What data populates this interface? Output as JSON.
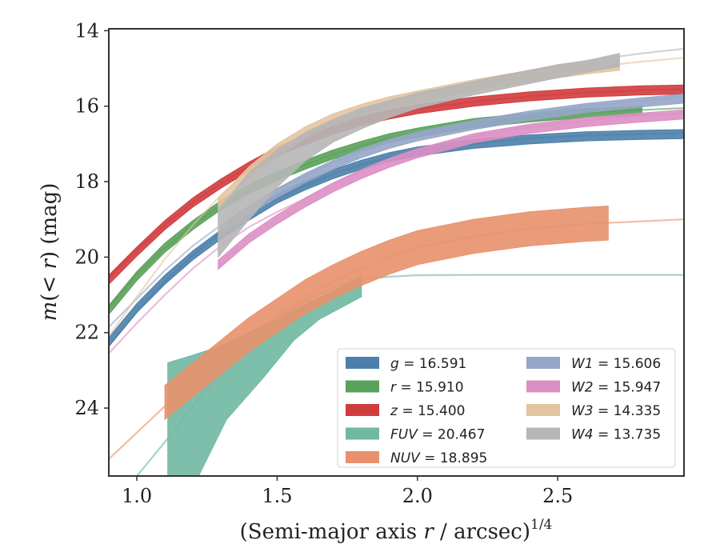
{
  "chart_data": {
    "type": "line",
    "title": "",
    "xlabel": "(Semi-major axis r / arcsec)",
    "xlabel_parts": {
      "pre": "(Semi-major axis ",
      "var": "r",
      "post": " / arcsec)",
      "sup": "1/4"
    },
    "ylabel_parts": {
      "var1": "m",
      "mid": "(< ",
      "var2": "r",
      "post": ") (mag)"
    },
    "ylabel": "m(< r) (mag)",
    "xlim": [
      0.9,
      2.95
    ],
    "ylim": [
      25.8,
      13.95
    ],
    "y_inverted": true,
    "xticks": [
      1.0,
      1.5,
      2.0,
      2.5
    ],
    "xtick_labels": [
      "1.0",
      "1.5",
      "2.0",
      "2.5"
    ],
    "yticks": [
      14,
      16,
      18,
      20,
      22,
      24
    ],
    "ytick_labels": [
      "14",
      "16",
      "18",
      "20",
      "22",
      "24"
    ],
    "grid": false,
    "legend_position": "bottom-right",
    "legend_columns": 2,
    "series": [
      {
        "name": "g",
        "value": "16.591",
        "color": "#4c7fab",
        "model": [
          [
            0.9,
            22.35
          ],
          [
            1.0,
            21.45
          ],
          [
            1.1,
            20.65
          ],
          [
            1.2,
            19.95
          ],
          [
            1.3,
            19.35
          ],
          [
            1.4,
            18.85
          ],
          [
            1.5,
            18.45
          ],
          [
            1.6,
            18.1
          ],
          [
            1.7,
            17.8
          ],
          [
            1.8,
            17.55
          ],
          [
            1.9,
            17.35
          ],
          [
            2.0,
            17.2
          ],
          [
            2.2,
            17.0
          ],
          [
            2.4,
            16.85
          ],
          [
            2.6,
            16.78
          ],
          [
            2.8,
            16.74
          ],
          [
            2.95,
            16.72
          ]
        ],
        "data": [
          [
            0.9,
            22.25
          ],
          [
            1.0,
            21.35
          ],
          [
            1.1,
            20.6
          ],
          [
            1.2,
            19.95
          ],
          [
            1.3,
            19.4
          ],
          [
            1.4,
            18.9
          ],
          [
            1.5,
            18.45
          ],
          [
            1.6,
            18.1
          ],
          [
            1.7,
            17.8
          ],
          [
            1.8,
            17.55
          ],
          [
            1.9,
            17.35
          ],
          [
            2.0,
            17.2
          ],
          [
            2.2,
            17.0
          ],
          [
            2.4,
            16.88
          ],
          [
            2.6,
            16.8
          ],
          [
            2.8,
            16.76
          ],
          [
            2.95,
            16.74
          ]
        ],
        "band_width": 0.12
      },
      {
        "name": "r",
        "value": "15.910",
        "color": "#5aa15a",
        "model": [
          [
            0.9,
            21.35
          ],
          [
            1.0,
            20.45
          ],
          [
            1.1,
            19.75
          ],
          [
            1.2,
            19.15
          ],
          [
            1.3,
            18.62
          ],
          [
            1.4,
            18.2
          ],
          [
            1.5,
            17.85
          ],
          [
            1.6,
            17.55
          ],
          [
            1.7,
            17.28
          ],
          [
            1.8,
            17.05
          ],
          [
            1.9,
            16.85
          ],
          [
            2.0,
            16.7
          ],
          [
            2.2,
            16.45
          ],
          [
            2.4,
            16.3
          ],
          [
            2.6,
            16.18
          ],
          [
            2.8,
            16.1
          ],
          [
            2.95,
            16.05
          ]
        ],
        "data": [
          [
            0.9,
            21.4
          ],
          [
            1.0,
            20.5
          ],
          [
            1.1,
            19.75
          ],
          [
            1.2,
            19.15
          ],
          [
            1.3,
            18.62
          ],
          [
            1.4,
            18.2
          ],
          [
            1.5,
            17.85
          ],
          [
            1.6,
            17.55
          ],
          [
            1.7,
            17.28
          ],
          [
            1.8,
            17.05
          ],
          [
            1.9,
            16.85
          ],
          [
            2.0,
            16.7
          ],
          [
            2.2,
            16.45
          ],
          [
            2.4,
            16.3
          ],
          [
            2.6,
            16.18
          ],
          [
            2.8,
            16.12
          ]
        ],
        "band_width": 0.12
      },
      {
        "name": "z",
        "value": "15.400",
        "color": "#d03c3e",
        "model": [
          [
            0.9,
            20.55
          ],
          [
            1.0,
            19.8
          ],
          [
            1.1,
            19.15
          ],
          [
            1.2,
            18.55
          ],
          [
            1.3,
            18.05
          ],
          [
            1.4,
            17.6
          ],
          [
            1.5,
            17.2
          ],
          [
            1.6,
            16.9
          ],
          [
            1.7,
            16.62
          ],
          [
            1.8,
            16.4
          ],
          [
            1.9,
            16.22
          ],
          [
            2.0,
            16.08
          ],
          [
            2.2,
            15.88
          ],
          [
            2.4,
            15.74
          ],
          [
            2.6,
            15.64
          ],
          [
            2.8,
            15.58
          ],
          [
            2.95,
            15.55
          ]
        ],
        "data": [
          [
            0.9,
            20.6
          ],
          [
            1.0,
            19.85
          ],
          [
            1.1,
            19.15
          ],
          [
            1.2,
            18.55
          ],
          [
            1.3,
            18.05
          ],
          [
            1.4,
            17.6
          ],
          [
            1.5,
            17.2
          ],
          [
            1.6,
            16.9
          ],
          [
            1.7,
            16.62
          ],
          [
            1.8,
            16.4
          ],
          [
            1.9,
            16.22
          ],
          [
            2.0,
            16.08
          ],
          [
            2.2,
            15.88
          ],
          [
            2.4,
            15.74
          ],
          [
            2.6,
            15.64
          ],
          [
            2.8,
            15.58
          ],
          [
            2.95,
            15.56
          ]
        ],
        "band_width": 0.12
      },
      {
        "name": "FUV",
        "value": "20.467",
        "color": "#70b8a2",
        "model": [
          [
            1.0,
            25.8
          ],
          [
            1.1,
            24.9
          ],
          [
            1.2,
            23.95
          ],
          [
            1.3,
            23.05
          ],
          [
            1.4,
            22.3
          ],
          [
            1.5,
            21.65
          ],
          [
            1.6,
            21.15
          ],
          [
            1.7,
            20.8
          ],
          [
            1.8,
            20.6
          ],
          [
            1.9,
            20.52
          ],
          [
            2.0,
            20.48
          ],
          [
            2.2,
            20.47
          ],
          [
            2.5,
            20.47
          ],
          [
            2.95,
            20.47
          ]
        ],
        "band_upper": [
          [
            1.11,
            22.8
          ],
          [
            1.2,
            22.6
          ],
          [
            1.3,
            22.35
          ],
          [
            1.4,
            22.0
          ],
          [
            1.5,
            21.65
          ],
          [
            1.6,
            21.25
          ],
          [
            1.7,
            20.9
          ],
          [
            1.8,
            20.5
          ]
        ],
        "band_lower": [
          [
            1.11,
            25.8
          ],
          [
            1.22,
            25.8
          ],
          [
            1.32,
            24.3
          ],
          [
            1.45,
            23.2
          ],
          [
            1.56,
            22.2
          ],
          [
            1.65,
            21.65
          ],
          [
            1.75,
            21.25
          ],
          [
            1.8,
            21.05
          ]
        ]
      },
      {
        "name": "NUV",
        "value": "18.895",
        "color": "#e8916c",
        "model": [
          [
            0.9,
            25.35
          ],
          [
            1.0,
            24.65
          ],
          [
            1.1,
            23.95
          ],
          [
            1.2,
            23.3
          ],
          [
            1.3,
            22.65
          ],
          [
            1.4,
            22.1
          ],
          [
            1.5,
            21.55
          ],
          [
            1.6,
            21.05
          ],
          [
            1.7,
            20.65
          ],
          [
            1.8,
            20.3
          ],
          [
            1.9,
            20.0
          ],
          [
            2.0,
            19.75
          ],
          [
            2.2,
            19.45
          ],
          [
            2.4,
            19.25
          ],
          [
            2.6,
            19.12
          ],
          [
            2.8,
            19.05
          ],
          [
            2.95,
            19.0
          ]
        ],
        "data": [
          [
            1.1,
            23.85
          ],
          [
            1.2,
            23.25
          ],
          [
            1.3,
            22.65
          ],
          [
            1.4,
            22.05
          ],
          [
            1.5,
            21.55
          ],
          [
            1.6,
            21.05
          ],
          [
            1.7,
            20.65
          ],
          [
            1.8,
            20.3
          ],
          [
            1.9,
            20.0
          ],
          [
            2.0,
            19.75
          ],
          [
            2.2,
            19.45
          ],
          [
            2.4,
            19.25
          ],
          [
            2.6,
            19.13
          ],
          [
            2.68,
            19.1
          ]
        ],
        "band_width": 0.45
      },
      {
        "name": "W1",
        "value": "15.606",
        "color": "#96a6c8",
        "model": [
          [
            0.9,
            21.85
          ],
          [
            1.0,
            21.1
          ],
          [
            1.1,
            20.35
          ],
          [
            1.2,
            19.7
          ],
          [
            1.3,
            19.15
          ],
          [
            1.4,
            18.65
          ],
          [
            1.5,
            18.2
          ],
          [
            1.6,
            17.85
          ],
          [
            1.7,
            17.5
          ],
          [
            1.8,
            17.2
          ],
          [
            1.9,
            16.95
          ],
          [
            2.0,
            16.75
          ],
          [
            2.2,
            16.45
          ],
          [
            2.4,
            16.2
          ],
          [
            2.6,
            16.0
          ],
          [
            2.8,
            15.85
          ],
          [
            2.95,
            15.75
          ]
        ],
        "data": [
          [
            1.3,
            19.3
          ],
          [
            1.4,
            18.75
          ],
          [
            1.5,
            18.3
          ],
          [
            1.6,
            17.9
          ],
          [
            1.7,
            17.55
          ],
          [
            1.8,
            17.25
          ],
          [
            1.9,
            17.0
          ],
          [
            2.0,
            16.8
          ],
          [
            2.2,
            16.5
          ],
          [
            2.4,
            16.25
          ],
          [
            2.6,
            16.05
          ],
          [
            2.8,
            15.9
          ],
          [
            2.95,
            15.8
          ]
        ],
        "band_width": 0.12
      },
      {
        "name": "W2",
        "value": "15.947",
        "color": "#dc8fc3",
        "model": [
          [
            0.9,
            22.55
          ],
          [
            1.0,
            21.75
          ],
          [
            1.1,
            21.0
          ],
          [
            1.2,
            20.3
          ],
          [
            1.3,
            19.7
          ],
          [
            1.4,
            19.2
          ],
          [
            1.5,
            18.8
          ],
          [
            1.6,
            18.45
          ],
          [
            1.7,
            18.05
          ],
          [
            1.8,
            17.7
          ],
          [
            1.9,
            17.4
          ],
          [
            2.0,
            17.15
          ],
          [
            2.2,
            16.8
          ],
          [
            2.4,
            16.55
          ],
          [
            2.6,
            16.38
          ],
          [
            2.8,
            16.25
          ],
          [
            2.95,
            16.18
          ]
        ],
        "data": [
          [
            1.29,
            20.2
          ],
          [
            1.4,
            19.5
          ],
          [
            1.5,
            19.0
          ],
          [
            1.6,
            18.55
          ],
          [
            1.7,
            18.15
          ],
          [
            1.8,
            17.8
          ],
          [
            1.9,
            17.5
          ],
          [
            2.0,
            17.25
          ],
          [
            2.2,
            16.85
          ],
          [
            2.4,
            16.6
          ],
          [
            2.6,
            16.42
          ],
          [
            2.8,
            16.3
          ],
          [
            2.95,
            16.22
          ]
        ],
        "band_width": 0.12
      },
      {
        "name": "W3",
        "value": "14.335",
        "color": "#e3c4a0",
        "model": [
          [
            0.9,
            22.1
          ],
          [
            1.0,
            21.05
          ],
          [
            1.1,
            20.05
          ],
          [
            1.2,
            19.15
          ],
          [
            1.3,
            18.35
          ],
          [
            1.4,
            17.7
          ],
          [
            1.5,
            17.15
          ],
          [
            1.6,
            16.75
          ],
          [
            1.7,
            16.4
          ],
          [
            1.8,
            16.15
          ],
          [
            1.9,
            15.95
          ],
          [
            2.0,
            15.8
          ],
          [
            2.2,
            15.5
          ],
          [
            2.4,
            15.2
          ],
          [
            2.6,
            14.98
          ],
          [
            2.8,
            14.82
          ],
          [
            2.95,
            14.72
          ]
        ],
        "data": [
          [
            1.29,
            18.6
          ],
          [
            1.4,
            17.75
          ],
          [
            1.5,
            17.15
          ],
          [
            1.6,
            16.7
          ],
          [
            1.7,
            16.35
          ],
          [
            1.8,
            16.1
          ],
          [
            1.9,
            15.9
          ],
          [
            2.0,
            15.75
          ],
          [
            2.2,
            15.45
          ],
          [
            2.4,
            15.2
          ],
          [
            2.6,
            15.0
          ],
          [
            2.72,
            14.9
          ]
        ],
        "band_width": 0.15
      },
      {
        "name": "W4",
        "value": "13.735",
        "color": "#b6b6b6",
        "model": [
          [
            1.29,
            19.4
          ],
          [
            1.4,
            18.1
          ],
          [
            1.5,
            17.35
          ],
          [
            1.6,
            16.85
          ],
          [
            1.7,
            16.45
          ],
          [
            1.8,
            16.15
          ],
          [
            1.9,
            15.9
          ],
          [
            2.0,
            15.7
          ],
          [
            2.2,
            15.35
          ],
          [
            2.4,
            15.05
          ],
          [
            2.6,
            14.8
          ],
          [
            2.8,
            14.6
          ],
          [
            2.95,
            14.48
          ]
        ],
        "band_upper": [
          [
            1.29,
            18.75
          ],
          [
            1.4,
            17.75
          ],
          [
            1.5,
            17.15
          ],
          [
            1.6,
            16.7
          ],
          [
            1.7,
            16.35
          ],
          [
            1.8,
            16.05
          ],
          [
            1.9,
            15.85
          ],
          [
            2.0,
            15.65
          ],
          [
            2.2,
            15.35
          ],
          [
            2.4,
            15.05
          ],
          [
            2.5,
            14.9
          ],
          [
            2.6,
            14.8
          ],
          [
            2.72,
            14.6
          ]
        ],
        "band_lower": [
          [
            1.29,
            20.0
          ],
          [
            1.4,
            19.0
          ],
          [
            1.5,
            18.15
          ],
          [
            1.6,
            17.45
          ],
          [
            1.7,
            16.95
          ],
          [
            1.8,
            16.6
          ],
          [
            1.9,
            16.3
          ],
          [
            2.0,
            16.05
          ],
          [
            2.2,
            15.7
          ],
          [
            2.4,
            15.4
          ],
          [
            2.5,
            15.25
          ],
          [
            2.6,
            15.1
          ],
          [
            2.72,
            14.95
          ]
        ]
      }
    ]
  }
}
